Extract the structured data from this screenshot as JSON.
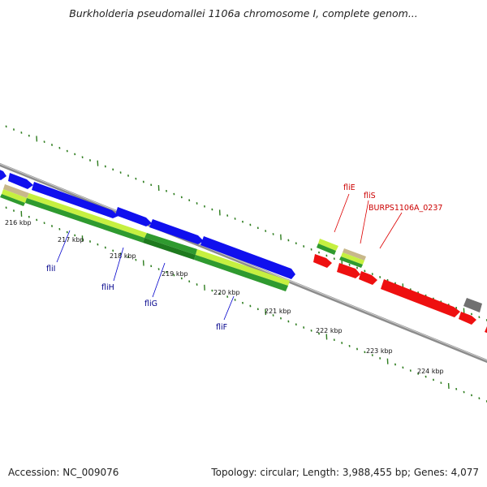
{
  "header": {
    "title": "Burkholderia pseudomallei 1106a chromosome I, complete genom..."
  },
  "footer": {
    "accession": "Accession: NC_009076",
    "summary": "Topology: circular; Length: 3,988,455 bp; Genes: 4,077"
  },
  "colors": {
    "backbone": "#8c8c8c",
    "tick": "#2e7d1f",
    "forward_gene": "#1010ee",
    "reverse_gene": "#ee1010",
    "rna_light": "#c6f040",
    "rna_dark": "#2f9a2f",
    "tan": "#c8b88a",
    "gray": "#707070",
    "label_forward": "#00008b",
    "label_reverse": "#cc0000"
  },
  "scale": {
    "labels": [
      "216 kbp",
      "217 kbp",
      "218 kbp",
      "219 kbp",
      "220 kbp",
      "221 kbp",
      "222 kbp",
      "223 kbp",
      "224 kbp"
    ]
  },
  "genes_forward": [
    {
      "name": "fliI"
    },
    {
      "name": "fliH"
    },
    {
      "name": "fliG"
    },
    {
      "name": "fliF"
    }
  ],
  "genes_reverse": [
    {
      "name": "fliE"
    },
    {
      "name": "fliS"
    },
    {
      "name": "BURPS1106A_0237"
    }
  ]
}
